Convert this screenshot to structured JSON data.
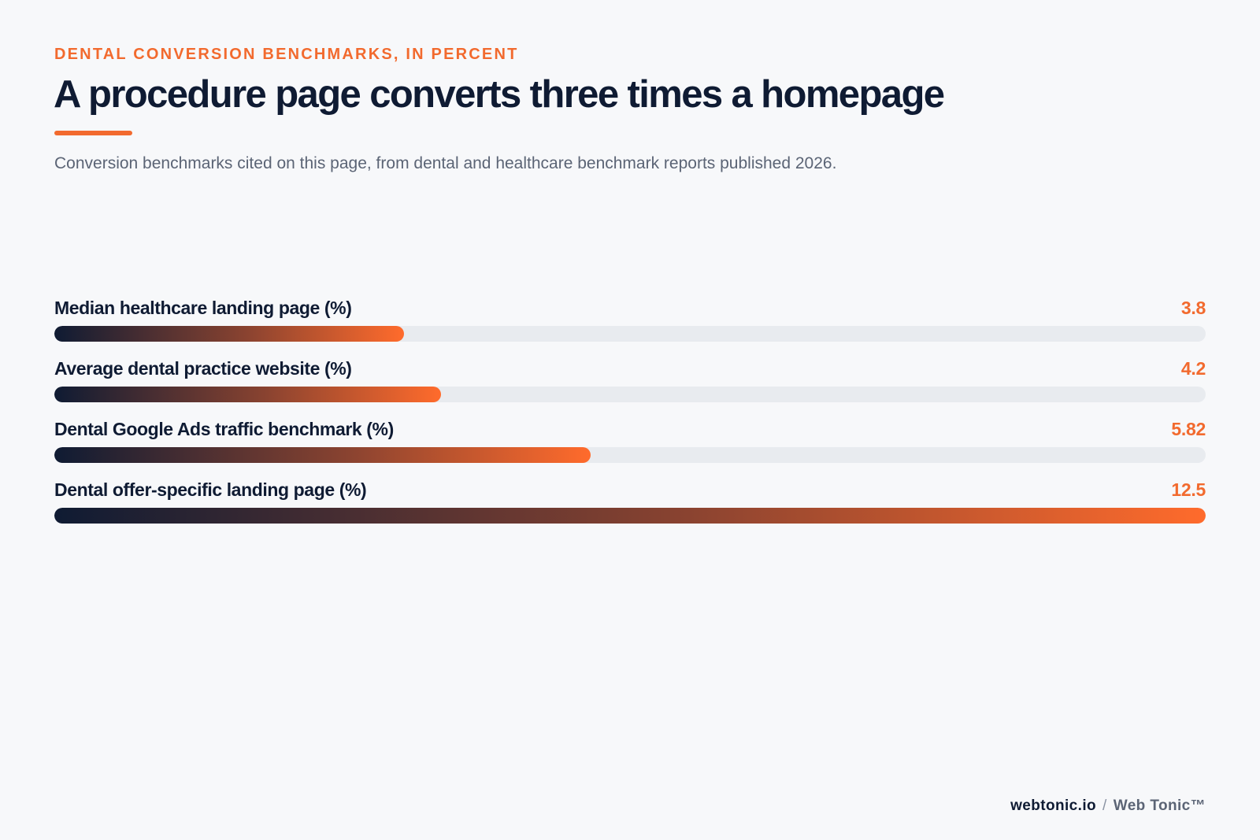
{
  "header": {
    "eyebrow": "DENTAL CONVERSION BENCHMARKS, IN PERCENT",
    "title": "A procedure page converts three times a homepage",
    "subtitle": "Conversion benchmarks cited on this page, from dental and healthcare benchmark reports published 2026."
  },
  "colors": {
    "accent": "#f26a2e",
    "navy": "#0f1b33",
    "track": "#e8ebef",
    "background": "#f7f8fa"
  },
  "chart_data": {
    "type": "bar",
    "orientation": "horizontal",
    "title": "A procedure page converts three times a homepage",
    "unit": "%",
    "xlim": [
      0,
      12.5
    ],
    "grid": false,
    "categories": [
      "Median healthcare landing page (%)",
      "Average dental practice website (%)",
      "Dental Google Ads traffic benchmark (%)",
      "Dental offer-specific landing page (%)"
    ],
    "values": [
      3.8,
      4.2,
      5.82,
      12.5
    ],
    "value_labels": [
      "3.8",
      "4.2",
      "5.82",
      "12.5"
    ]
  },
  "footer": {
    "domain": "webtonic.io",
    "separator": "/",
    "brand": "Web Tonic™"
  }
}
